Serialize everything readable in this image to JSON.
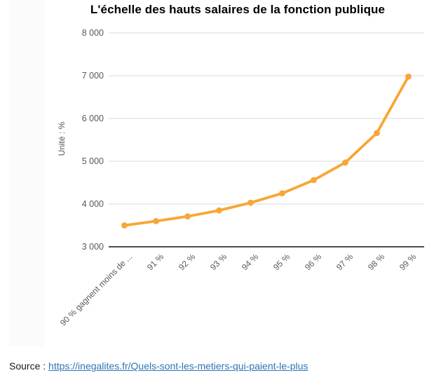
{
  "page": {
    "source_label": "Source :",
    "source_url_text": "https://inegalites.fr/Quels-sont-les-metiers-qui-paient-le-plus"
  },
  "chart_data": {
    "type": "line",
    "title": "L'échelle des hauts salaires de la fonction publique",
    "ylabel": "Unité : %",
    "xlabel": "",
    "categories": [
      "90 % gagnent moins de ...",
      "91 %",
      "92 %",
      "93 %",
      "94 %",
      "95 %",
      "96 %",
      "97 %",
      "98 %",
      "99 %"
    ],
    "values": [
      3500,
      3600,
      3710,
      3850,
      4030,
      4250,
      4560,
      4970,
      5660,
      6980
    ],
    "ylim": [
      3000,
      8000
    ],
    "ytick_step": 1000,
    "grid": true,
    "legend": false,
    "marker": "circle",
    "line_color": "#F8A636"
  },
  "style": {
    "grid_color": "#D9D9D9",
    "axis_color": "#111111",
    "tick_color": "#595959",
    "link_color": "#2E74B5"
  }
}
